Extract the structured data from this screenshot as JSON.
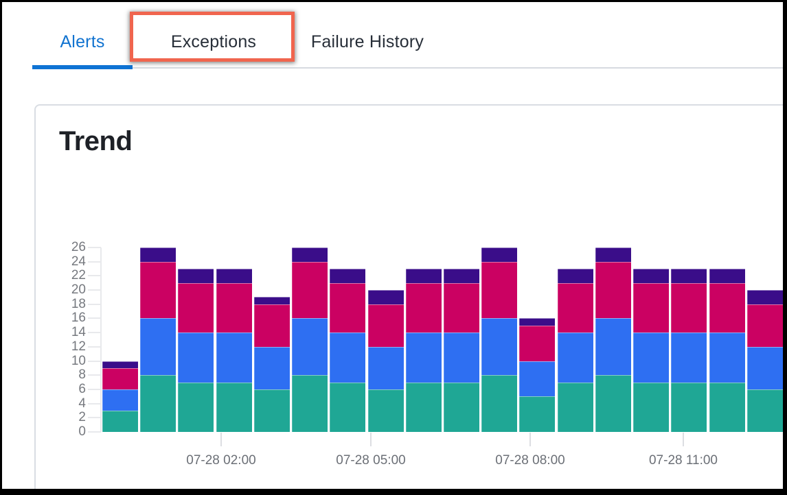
{
  "tabs": {
    "active": "Alerts",
    "items": [
      {
        "label": "Alerts"
      },
      {
        "label": "Exceptions"
      },
      {
        "label": "Failure History"
      }
    ]
  },
  "annotation": {
    "purpose": "highlight-exceptions-tab",
    "color": "#F0654E"
  },
  "card": {
    "title": "Trend"
  },
  "colors": {
    "active_tab": "#0E73D4",
    "tab_text": "#272E38",
    "axis_text": "#75787E"
  },
  "chart_data": {
    "type": "bar",
    "stacked": true,
    "title": "Trend",
    "n_bars": 18,
    "ylim": [
      0,
      26
    ],
    "y_ticks": [
      0,
      2,
      4,
      6,
      8,
      10,
      12,
      14,
      16,
      18,
      20,
      22,
      24,
      26
    ],
    "x_tick_labels": [
      "07-28 02:00",
      "07-28 05:00",
      "07-28 08:00",
      "07-28 11:00"
    ],
    "grid": false,
    "legend": "none",
    "series": [
      {
        "name": "teal",
        "color": "#1FA795",
        "values": [
          3,
          8,
          7,
          7,
          6,
          8,
          7,
          6,
          7,
          7,
          8,
          5,
          7,
          8,
          7,
          7,
          7,
          6
        ]
      },
      {
        "name": "blue",
        "color": "#2E6FF2",
        "values": [
          3,
          8,
          7,
          7,
          6,
          8,
          7,
          6,
          7,
          7,
          8,
          5,
          7,
          8,
          7,
          7,
          7,
          6
        ]
      },
      {
        "name": "magenta",
        "color": "#CB0162",
        "values": [
          3,
          8,
          7,
          7,
          6,
          8,
          7,
          6,
          7,
          7,
          8,
          5,
          7,
          8,
          7,
          7,
          7,
          6
        ]
      },
      {
        "name": "purple",
        "color": "#3A0D89",
        "values": [
          1,
          2,
          2,
          2,
          1,
          2,
          2,
          2,
          2,
          2,
          2,
          1,
          2,
          2,
          2,
          2,
          2,
          2
        ]
      }
    ],
    "totals": [
      10,
      26,
      23,
      23,
      19,
      26,
      23,
      20,
      23,
      23,
      26,
      16,
      23,
      26,
      23,
      23,
      23,
      20
    ]
  }
}
